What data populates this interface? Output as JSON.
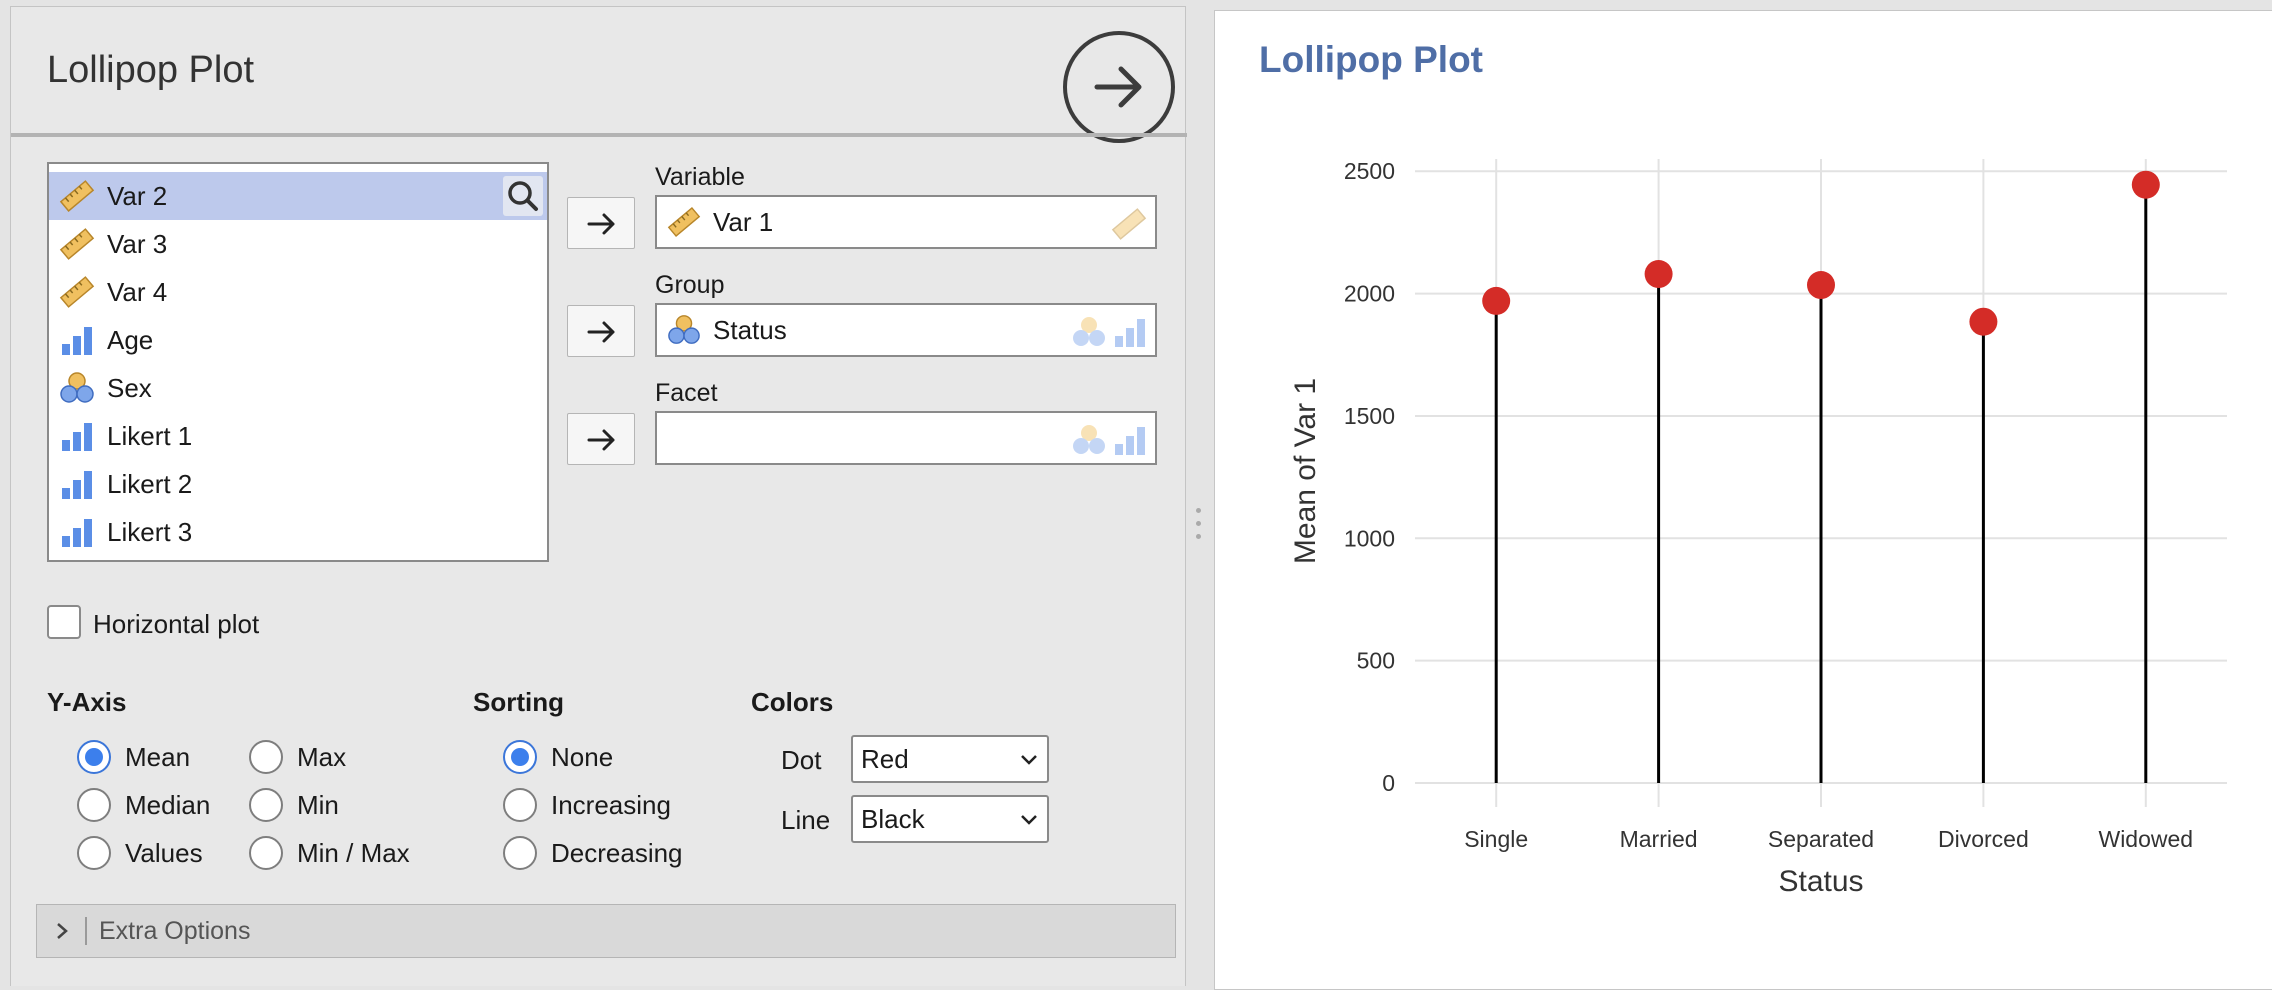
{
  "options": {
    "title": "Lollipop Plot",
    "run_icon": "arrow-right-circle-icon",
    "variables": [
      {
        "label": "Var 2",
        "icon": "ruler-icon",
        "selected": true
      },
      {
        "label": "Var 3",
        "icon": "ruler-icon"
      },
      {
        "label": "Var 4",
        "icon": "ruler-icon"
      },
      {
        "label": "Age",
        "icon": "ordinal-bars-icon"
      },
      {
        "label": "Sex",
        "icon": "nominal-circles-icon"
      },
      {
        "label": "Likert 1",
        "icon": "ordinal-bars-icon"
      },
      {
        "label": "Likert 2",
        "icon": "ordinal-bars-icon"
      },
      {
        "label": "Likert 3",
        "icon": "ordinal-bars-icon"
      }
    ],
    "fields": {
      "variable": {
        "label": "Variable",
        "value": "Var 1"
      },
      "group": {
        "label": "Group",
        "value": "Status"
      },
      "facet": {
        "label": "Facet",
        "value": ""
      }
    },
    "horizontal_plot": {
      "label": "Horizontal plot",
      "checked": false
    },
    "y_axis": {
      "title": "Y-Axis",
      "options": [
        "Mean",
        "Median",
        "Values",
        "Max",
        "Min",
        "Min / Max"
      ],
      "selected": "Mean"
    },
    "sorting": {
      "title": "Sorting",
      "options": [
        "None",
        "Increasing",
        "Decreasing"
      ],
      "selected": "None"
    },
    "colors": {
      "title": "Colors",
      "dot_label": "Dot",
      "dot_value": "Red",
      "line_label": "Line",
      "line_value": "Black"
    },
    "extra_options": "Extra Options"
  },
  "results": {
    "title": "Lollipop Plot"
  },
  "chart_data": {
    "type": "lollipop",
    "categories": [
      "Single",
      "Married",
      "Separated",
      "Divorced",
      "Widowed"
    ],
    "values": [
      1970,
      2080,
      2035,
      1885,
      2445
    ],
    "xlabel": "Status",
    "ylabel": "Mean of Var 1",
    "ylim": [
      0,
      2550
    ],
    "yticks": [
      0,
      500,
      1000,
      1500,
      2000,
      2500
    ],
    "grid": true,
    "dot_color": "#d42c27",
    "line_color": "#000000",
    "legend": "none"
  }
}
